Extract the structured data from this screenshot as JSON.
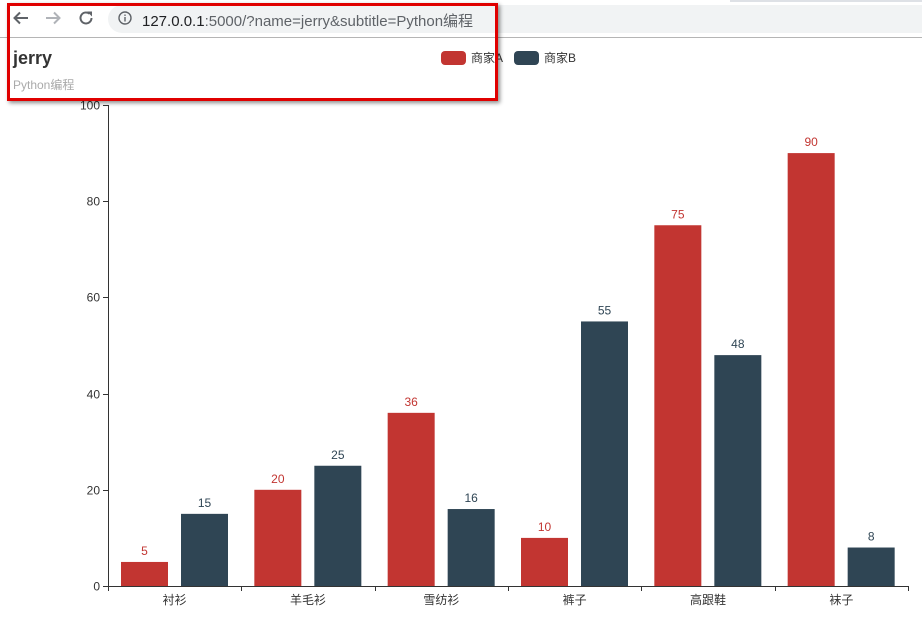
{
  "browser": {
    "url_host": "127.0.0.1",
    "url_rest": ":5000/?name=jerry&subtitle=Python编程",
    "back_icon": "arrow-left-icon",
    "forward_icon": "arrow-right-icon",
    "reload_icon": "reload-icon",
    "info_icon": "info-icon"
  },
  "header": {
    "title": "jerry",
    "subtitle": "Python编程"
  },
  "legend": [
    {
      "label": "商家A",
      "color": "#c23531"
    },
    {
      "label": "商家B",
      "color": "#2f4554"
    }
  ],
  "chart_data": {
    "type": "bar",
    "title": "jerry",
    "subtitle": "Python编程",
    "categories": [
      "衬衫",
      "羊毛衫",
      "雪纺衫",
      "裤子",
      "高跟鞋",
      "袜子"
    ],
    "series": [
      {
        "name": "商家A",
        "color": "#c23531",
        "values": [
          5,
          20,
          36,
          10,
          75,
          90
        ]
      },
      {
        "name": "商家B",
        "color": "#2f4554",
        "values": [
          15,
          25,
          16,
          55,
          48,
          8
        ]
      }
    ],
    "xlabel": "",
    "ylabel": "",
    "ylim": [
      0,
      100
    ],
    "yticks": [
      0,
      20,
      40,
      60,
      80,
      100
    ],
    "grid": false,
    "legend_position": "top-center",
    "data_labels": true
  }
}
